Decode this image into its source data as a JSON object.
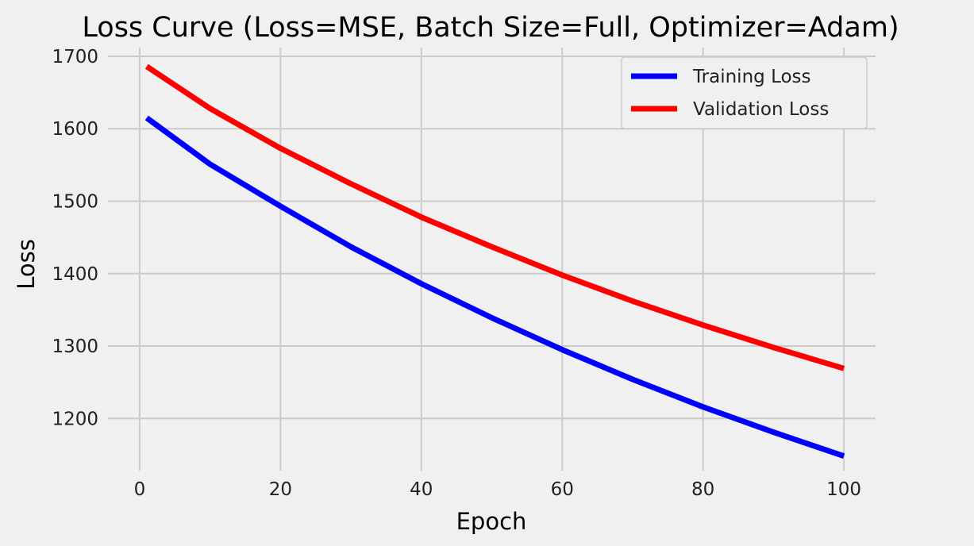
{
  "chart_data": {
    "type": "line",
    "title": "Loss Curve (Loss=MSE, Batch Size=Full, Optimizer=Adam)",
    "xlabel": "Epoch",
    "ylabel": "Loss",
    "xlim": [
      -4.5,
      104.5
    ],
    "ylim": [
      1128,
      1712
    ],
    "xticks": [
      0,
      20,
      40,
      60,
      80,
      100
    ],
    "yticks": [
      1200,
      1300,
      1400,
      1500,
      1600,
      1700
    ],
    "grid": true,
    "legend_position": "top-right",
    "x": [
      1,
      10,
      20,
      30,
      40,
      50,
      60,
      70,
      80,
      90,
      100
    ],
    "series": [
      {
        "name": "Training Loss",
        "color": "#0000ff",
        "values": [
          1615,
          1551,
          1493,
          1437,
          1386,
          1339,
          1295,
          1254,
          1216,
          1181,
          1148
        ]
      },
      {
        "name": "Validation Loss",
        "color": "#ff0000",
        "values": [
          1686,
          1628,
          1573,
          1524,
          1478,
          1437,
          1398,
          1362,
          1329,
          1298,
          1269
        ]
      }
    ]
  }
}
